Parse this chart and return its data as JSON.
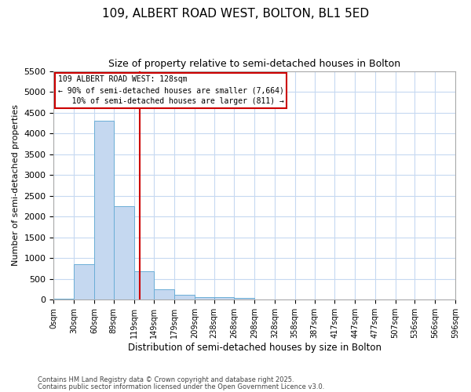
{
  "title": "109, ALBERT ROAD WEST, BOLTON, BL1 5ED",
  "subtitle": "Size of property relative to semi-detached houses in Bolton",
  "xlabel": "Distribution of semi-detached houses by size in Bolton",
  "ylabel": "Number of semi-detached properties",
  "footnote1": "Contains HM Land Registry data © Crown copyright and database right 2025.",
  "footnote2": "Contains public sector information licensed under the Open Government Licence v3.0.",
  "bar_left_edges": [
    0,
    30,
    60,
    89,
    119,
    149,
    179,
    209,
    238,
    268,
    298,
    328,
    358,
    387,
    417,
    447,
    477,
    507,
    536,
    566
  ],
  "bar_widths": [
    30,
    30,
    29,
    30,
    30,
    30,
    30,
    29,
    30,
    30,
    30,
    30,
    29,
    30,
    30,
    30,
    30,
    29,
    30,
    30
  ],
  "bar_heights": [
    30,
    850,
    4300,
    2250,
    680,
    250,
    120,
    65,
    55,
    35,
    10,
    4,
    2,
    1,
    1,
    0,
    0,
    0,
    0,
    0
  ],
  "bar_color": "#c5d8f0",
  "bar_edge_color": "#6baed6",
  "vline_color": "#cc0000",
  "vline_x": 128,
  "annotation_line1": "109 ALBERT ROAD WEST: 128sqm",
  "annotation_line2": "← 90% of semi-detached houses are smaller (7,664)",
  "annotation_line3": "   10% of semi-detached houses are larger (811) →",
  "annotation_box_color": "#cc0000",
  "ylim": [
    0,
    5500
  ],
  "yticks": [
    0,
    500,
    1000,
    1500,
    2000,
    2500,
    3000,
    3500,
    4000,
    4500,
    5000,
    5500
  ],
  "xtick_positions": [
    0,
    30,
    60,
    89,
    119,
    149,
    179,
    209,
    238,
    268,
    298,
    328,
    358,
    387,
    417,
    447,
    477,
    507,
    536,
    566,
    596
  ],
  "xtick_labels": [
    "0sqm",
    "30sqm",
    "60sqm",
    "89sqm",
    "119sqm",
    "149sqm",
    "179sqm",
    "209sqm",
    "238sqm",
    "268sqm",
    "298sqm",
    "328sqm",
    "358sqm",
    "387sqm",
    "417sqm",
    "447sqm",
    "477sqm",
    "507sqm",
    "536sqm",
    "566sqm",
    "596sqm"
  ],
  "xlim": [
    0,
    596
  ],
  "background_color": "#ffffff",
  "grid_color": "#c6d9f1",
  "title_fontsize": 11,
  "subtitle_fontsize": 9
}
